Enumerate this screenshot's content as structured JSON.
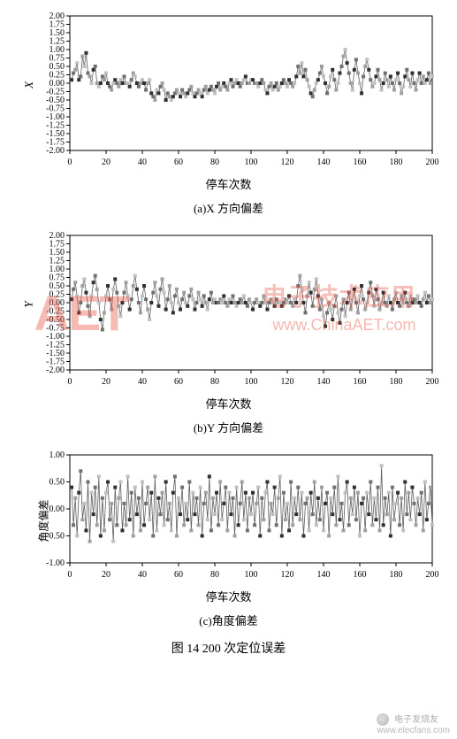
{
  "figure_caption": "图 14  200 次定位误差",
  "chart_a": {
    "type": "line-scatter",
    "xlabel": "停车次数",
    "ylabel": "X",
    "subcaption": "(a)X 方向偏差",
    "xlim": [
      0,
      200
    ],
    "xtick_step": 20,
    "ylim": [
      -2.0,
      2.0
    ],
    "ytick_step": 0.25,
    "background_color": "#ffffff",
    "axis_color": "#000000",
    "line_color": "#606060",
    "marker_colors": [
      "#303030",
      "#707070",
      "#a0a0a0",
      "#c0c0c0"
    ],
    "marker": "square",
    "marker_size": 3,
    "line_width": 0.8,
    "label_fontsize": 13,
    "tick_fontsize": 10
  },
  "chart_b": {
    "type": "line-scatter",
    "xlabel": "停车次数",
    "ylabel": "Y",
    "subcaption": "(b)Y 方向偏差",
    "xlim": [
      0,
      200
    ],
    "xtick_step": 20,
    "ylim": [
      -2.0,
      2.0
    ],
    "ytick_step": 0.25,
    "background_color": "#ffffff",
    "axis_color": "#000000",
    "line_color": "#606060",
    "marker_colors": [
      "#303030",
      "#707070",
      "#a0a0a0",
      "#c0c0c0"
    ],
    "marker": "square",
    "marker_size": 3,
    "line_width": 0.8,
    "label_fontsize": 13,
    "tick_fontsize": 10
  },
  "chart_c": {
    "type": "line-scatter",
    "xlabel": "停车次数",
    "ylabel": "角度偏差",
    "subcaption": "(c)角度偏差",
    "xlim": [
      0,
      200
    ],
    "xtick_step": 20,
    "ylim": [
      -1.0,
      1.0
    ],
    "ytick_step": 0.5,
    "background_color": "#ffffff",
    "axis_color": "#000000",
    "line_color": "#606060",
    "marker_colors": [
      "#303030",
      "#707070",
      "#a0a0a0",
      "#c0c0c0"
    ],
    "marker": "square",
    "marker_size": 3,
    "line_width": 0.8,
    "label_fontsize": 12,
    "tick_fontsize": 10
  },
  "watermarks": {
    "aet_logo_text": "AET",
    "cn_text": "电子技术应用",
    "url_text": "www.ChinaAET.com",
    "elecfans_cn": "电子发烧友",
    "elecfans_url": "www.elecfans.com",
    "color": "#e74c3c",
    "opacity": 0.38
  },
  "data_a": [
    0.1,
    0.3,
    0.4,
    0.6,
    0.1,
    0.2,
    0.8,
    0.5,
    0.9,
    0.3,
    0.2,
    0.0,
    0.4,
    0.5,
    0.0,
    -0.1,
    0.0,
    0.2,
    0.1,
    0.3,
    0.0,
    -0.1,
    -0.2,
    0.0,
    0.1,
    0.0,
    -0.1,
    0.1,
    0.0,
    0.2,
    0.0,
    0.0,
    -0.1,
    0.1,
    0.3,
    0.2,
    0.0,
    -0.1,
    0.0,
    0.1,
    0.0,
    -0.2,
    0.0,
    0.1,
    -0.3,
    -0.4,
    -0.5,
    -0.2,
    -0.3,
    -0.1,
    0.0,
    -0.2,
    -0.5,
    -0.3,
    -0.4,
    -0.5,
    -0.4,
    -0.3,
    -0.2,
    -0.3,
    -0.4,
    -0.2,
    -0.3,
    -0.4,
    -0.3,
    -0.2,
    -0.1,
    -0.3,
    -0.4,
    -0.3,
    -0.2,
    -0.3,
    -0.4,
    -0.2,
    -0.1,
    -0.3,
    -0.2,
    -0.1,
    -0.2,
    -0.3,
    -0.1,
    0.0,
    -0.2,
    -0.1,
    0.0,
    -0.1,
    -0.2,
    0.0,
    0.1,
    -0.1,
    0.0,
    0.1,
    0.0,
    -0.1,
    0.0,
    0.1,
    0.2,
    0.0,
    0.0,
    0.1,
    0.1,
    0.0,
    0.0,
    -0.1,
    0.0,
    0.1,
    0.0,
    -0.2,
    -0.3,
    -0.1,
    0.0,
    -0.2,
    -0.1,
    0.0,
    -0.2,
    -0.1,
    0.0,
    0.1,
    0.0,
    -0.1,
    0.1,
    0.0,
    -0.1,
    0.0,
    0.2,
    0.5,
    0.3,
    0.6,
    0.2,
    0.4,
    0.1,
    -0.1,
    -0.3,
    -0.4,
    -0.2,
    0.0,
    0.1,
    0.3,
    0.5,
    0.2,
    0.0,
    -0.3,
    -0.1,
    0.2,
    0.4,
    0.1,
    -0.2,
    0.0,
    0.3,
    0.5,
    0.8,
    1.0,
    0.6,
    0.3,
    0.0,
    -0.2,
    0.4,
    0.7,
    0.3,
    0.0,
    -0.3,
    0.2,
    0.5,
    0.7,
    0.4,
    0.1,
    -0.1,
    0.0,
    0.2,
    0.4,
    0.1,
    -0.2,
    0.0,
    0.3,
    0.1,
    -0.1,
    0.2,
    0.0,
    -0.2,
    0.1,
    0.3,
    0.0,
    -0.3,
    -0.1,
    0.2,
    0.4,
    0.1,
    -0.1,
    0.3,
    0.0,
    -0.2,
    0.1,
    0.3,
    0.0,
    0.2,
    0.0,
    0.1,
    0.3,
    0.0,
    0.2
  ],
  "data_b": [
    0.1,
    0.4,
    0.6,
    0.2,
    -0.3,
    0.0,
    0.5,
    0.7,
    0.3,
    -0.1,
    -0.4,
    0.2,
    0.6,
    0.8,
    0.4,
    0.0,
    -0.5,
    -0.8,
    -0.3,
    0.2,
    0.5,
    0.1,
    -0.2,
    0.4,
    0.7,
    0.3,
    -0.1,
    -0.4,
    0.0,
    0.3,
    0.6,
    0.2,
    -0.2,
    0.1,
    0.5,
    0.8,
    0.4,
    0.0,
    -0.3,
    0.2,
    0.5,
    0.1,
    -0.2,
    -0.5,
    0.0,
    0.3,
    0.6,
    0.2,
    -0.1,
    0.4,
    0.7,
    0.3,
    -0.2,
    0.1,
    0.5,
    0.0,
    -0.3,
    0.2,
    0.4,
    0.0,
    -0.2,
    0.1,
    0.3,
    0.0,
    -0.1,
    0.2,
    0.4,
    0.1,
    -0.2,
    0.0,
    0.3,
    0.1,
    -0.1,
    0.2,
    0.0,
    -0.2,
    0.1,
    0.3,
    0.0,
    0.1,
    0.0,
    0.0,
    0.1,
    0.0,
    0.2,
    0.0,
    -0.1,
    0.1,
    0.0,
    0.2,
    0.0,
    -0.1,
    0.0,
    0.1,
    0.0,
    0.2,
    0.0,
    -0.1,
    0.1,
    0.0,
    -0.2,
    0.0,
    0.1,
    0.0,
    -0.1,
    0.0,
    0.2,
    0.0,
    -0.2,
    0.0,
    0.1,
    0.0,
    -0.1,
    0.1,
    0.0,
    0.0,
    -0.1,
    0.0,
    0.1,
    0.0,
    0.2,
    0.0,
    -0.1,
    0.1,
    0.0,
    0.5,
    0.8,
    0.4,
    0.0,
    -0.3,
    0.2,
    0.6,
    0.3,
    -0.1,
    0.4,
    0.7,
    0.2,
    -0.2,
    0.1,
    -0.4,
    -0.7,
    -0.3,
    0.0,
    -0.2,
    -0.5,
    -0.1,
    0.2,
    -0.3,
    -0.6,
    -0.2,
    0.1,
    -0.4,
    0.0,
    0.3,
    -0.2,
    0.1,
    0.4,
    0.0,
    -0.3,
    0.2,
    0.5,
    0.1,
    -0.2,
    0.0,
    0.3,
    0.6,
    0.2,
    -0.1,
    0.4,
    0.1,
    -0.2,
    0.0,
    0.3,
    0.0,
    -0.1,
    0.2,
    0.0,
    -0.2,
    0.1,
    0.3,
    0.0,
    -0.1,
    0.2,
    0.0,
    0.3,
    0.0,
    -0.1,
    0.2,
    0.0,
    0.1,
    0.0,
    0.2,
    0.0,
    -0.1,
    0.1,
    0.3,
    0.0,
    0.2,
    0.0,
    0.1
  ],
  "data_c": [
    0.4,
    -0.3,
    0.2,
    -0.5,
    0.3,
    0.7,
    -0.2,
    0.1,
    -0.4,
    0.5,
    -0.6,
    0.3,
    -0.1,
    0.4,
    -0.3,
    0.6,
    -0.5,
    0.2,
    -0.4,
    0.3,
    0.5,
    -0.2,
    0.1,
    -0.6,
    0.4,
    -0.3,
    0.2,
    0.5,
    -0.4,
    0.1,
    -0.3,
    0.6,
    -0.2,
    0.3,
    -0.5,
    0.4,
    -0.1,
    0.2,
    -0.4,
    0.5,
    -0.3,
    0.1,
    0.4,
    -0.2,
    0.3,
    -0.5,
    0.6,
    -0.4,
    0.2,
    -0.1,
    0.3,
    -0.3,
    0.5,
    -0.2,
    0.1,
    -0.4,
    0.3,
    0.6,
    -0.5,
    0.2,
    -0.1,
    0.4,
    -0.3,
    0.1,
    -0.2,
    0.5,
    -0.4,
    0.3,
    -0.1,
    0.2,
    -0.3,
    0.4,
    -0.5,
    0.1,
    0.3,
    -0.2,
    0.6,
    -0.4,
    0.2,
    -0.1,
    0.3,
    -0.3,
    0.5,
    -0.2,
    0.1,
    0.4,
    -0.4,
    0.3,
    -0.1,
    0.2,
    -0.5,
    0.4,
    -0.3,
    0.1,
    0.5,
    -0.2,
    0.3,
    -0.4,
    0.2,
    -0.1,
    0.3,
    -0.3,
    0.1,
    0.4,
    -0.5,
    0.2,
    -0.2,
    0.3,
    0.5,
    -0.4,
    0.1,
    -0.1,
    0.4,
    -0.3,
    0.2,
    0.6,
    -0.5,
    0.3,
    -0.2,
    0.1,
    -0.4,
    0.5,
    -0.3,
    0.2,
    -0.1,
    0.4,
    -0.2,
    0.3,
    -0.5,
    0.1,
    0.2,
    -0.4,
    0.3,
    -0.1,
    0.5,
    -0.3,
    0.2,
    -0.2,
    0.4,
    -0.4,
    0.1,
    0.3,
    -0.5,
    0.2,
    -0.1,
    0.4,
    -0.3,
    0.6,
    -0.2,
    0.1,
    -0.4,
    0.3,
    0.5,
    -0.3,
    0.2,
    -0.1,
    0.4,
    -0.2,
    0.3,
    -0.5,
    0.1,
    0.2,
    -0.4,
    0.3,
    -0.1,
    0.5,
    -0.3,
    0.2,
    -0.2,
    0.4,
    -0.4,
    0.8,
    -0.3,
    0.2,
    -0.1,
    0.3,
    -0.5,
    0.4,
    -0.2,
    0.1,
    0.3,
    -0.3,
    0.2,
    -0.4,
    0.5,
    -0.1,
    0.3,
    -0.2,
    0.4,
    0.1,
    -0.3,
    0.2,
    -0.1,
    0.3,
    -0.4,
    0.5,
    -0.2,
    0.1,
    0.4,
    -0.3
  ]
}
